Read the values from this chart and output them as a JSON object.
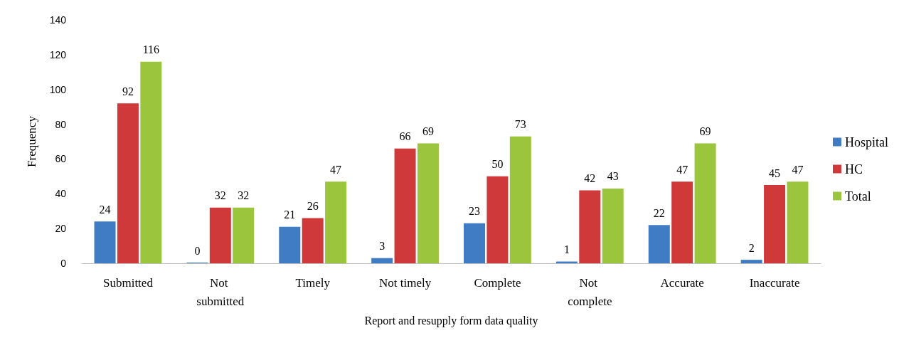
{
  "chart_data": {
    "type": "bar",
    "xlabel": "Report and resupply form data quality",
    "ylabel": "Frequency",
    "categories": [
      "Submitted",
      "Not submitted",
      "Timely",
      "Not timely",
      "Complete",
      "Not complete",
      "Accurate",
      "Inaccurate"
    ],
    "series": [
      {
        "name": "Hospital",
        "color": "#3f7cc4",
        "values": [
          24,
          0,
          21,
          3,
          23,
          1,
          22,
          2
        ]
      },
      {
        "name": "HC",
        "color": "#d0393a",
        "values": [
          92,
          32,
          26,
          66,
          50,
          42,
          47,
          45
        ]
      },
      {
        "name": "Total",
        "color": "#9ac53c",
        "values": [
          116,
          32,
          47,
          69,
          73,
          43,
          69,
          47
        ]
      }
    ],
    "ylim": [
      0,
      140
    ],
    "yticks": [
      0,
      20,
      40,
      60,
      80,
      100,
      120,
      140
    ],
    "data_labels": true,
    "grid": false,
    "legend": "right"
  }
}
